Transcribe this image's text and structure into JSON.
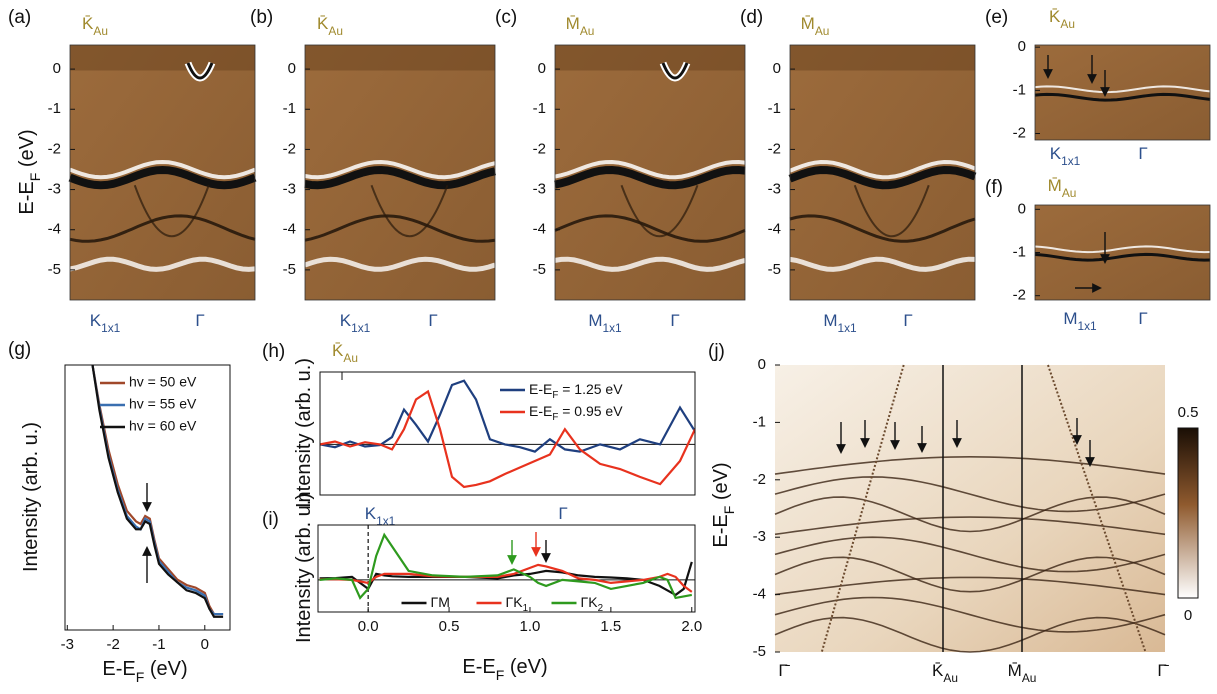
{
  "shared_ylabel": [
    {
      "t": "E-E"
    },
    {
      "t": "F",
      "sub": true
    },
    {
      "t": " (eV)"
    }
  ],
  "chart_data": [
    {
      "type": "image",
      "panel_label": "(a)",
      "ylim": [
        -5.75,
        0.6
      ],
      "yticks": [
        0,
        -1,
        -2,
        -3,
        -4,
        -5
      ],
      "top_labels": [
        [
          {
            "t": "K̄"
          },
          {
            "t": "Au",
            "sub": true
          }
        ]
      ],
      "x_labels": [
        [
          {
            "t": "K"
          },
          {
            "t": "1x1",
            "sub": true
          }
        ],
        [
          {
            "t": "Γ"
          }
        ]
      ]
    },
    {
      "type": "image",
      "panel_label": "(b)",
      "ylim": [
        -5.75,
        0.6
      ],
      "yticks": [
        0,
        -1,
        -2,
        -3,
        -4,
        -5
      ],
      "top_labels": [
        [
          {
            "t": "K̄"
          },
          {
            "t": "Au",
            "sub": true
          }
        ]
      ],
      "x_labels": [
        [
          {
            "t": "K"
          },
          {
            "t": "1x1",
            "sub": true
          }
        ],
        [
          {
            "t": "Γ"
          }
        ]
      ]
    },
    {
      "type": "image",
      "panel_label": "(c)",
      "ylim": [
        -5.75,
        0.6
      ],
      "yticks": [
        0,
        -1,
        -2,
        -3,
        -4,
        -5
      ],
      "top_labels": [
        [
          {
            "t": "M̄"
          },
          {
            "t": "Au",
            "sub": true
          }
        ]
      ],
      "x_labels": [
        [
          {
            "t": "M"
          },
          {
            "t": "1x1",
            "sub": true
          }
        ],
        [
          {
            "t": "Γ"
          }
        ]
      ]
    },
    {
      "type": "image",
      "panel_label": "(d)",
      "ylim": [
        -5.75,
        0.6
      ],
      "yticks": [
        0,
        -1,
        -2,
        -3,
        -4,
        -5
      ],
      "top_labels": [
        [
          {
            "t": "M̄"
          },
          {
            "t": "Au",
            "sub": true
          }
        ]
      ],
      "x_labels": [
        [
          {
            "t": "M"
          },
          {
            "t": "1x1",
            "sub": true
          }
        ],
        [
          {
            "t": "Γ"
          }
        ]
      ]
    },
    {
      "type": "image",
      "panel_label": "(e)",
      "ylim": [
        -2.15,
        0.05
      ],
      "yticks": [
        0,
        -1,
        -2
      ],
      "top_labels": [
        [
          {
            "t": "K̄"
          },
          {
            "t": "Au",
            "sub": true
          }
        ]
      ],
      "x_labels": [
        [
          {
            "t": "K"
          },
          {
            "t": "1x1",
            "sub": true
          }
        ],
        [
          {
            "t": "Γ"
          }
        ]
      ]
    },
    {
      "type": "image",
      "panel_label": "(f)",
      "ylim": [
        -2.1,
        0.1
      ],
      "yticks": [
        0,
        -1,
        -2
      ],
      "top_labels": [
        [
          {
            "t": "M̄"
          },
          {
            "t": "Au",
            "sub": true
          }
        ]
      ],
      "x_labels": [
        [
          {
            "t": "M"
          },
          {
            "t": "1x1",
            "sub": true
          }
        ],
        [
          {
            "t": "Γ"
          }
        ]
      ]
    },
    {
      "type": "line",
      "panel_label": "(g)",
      "xlim": [
        -3.05,
        0.55
      ],
      "ylim": [
        0,
        1
      ],
      "xticks": [
        -3,
        -2,
        -1,
        0
      ],
      "xlabel": [
        {
          "t": "E-E"
        },
        {
          "t": "F",
          "sub": true
        },
        {
          "t": " (eV)"
        }
      ],
      "ylabel": [
        {
          "t": "Intensity (arb. u.)"
        }
      ],
      "legend": "upper right",
      "x": [
        -2.45,
        -2.3,
        -2.1,
        -1.9,
        -1.7,
        -1.5,
        -1.4,
        -1.3,
        -1.2,
        -1.1,
        -1.0,
        -0.8,
        -0.6,
        -0.4,
        -0.2,
        0,
        0.1,
        0.2,
        0.4
      ],
      "series": [
        {
          "name": "hv = 50 eV",
          "color": "#a0482a",
          "values": [
            1.0,
            0.85,
            0.68,
            0.55,
            0.45,
            0.41,
            0.4,
            0.43,
            0.42,
            0.34,
            0.27,
            0.23,
            0.19,
            0.17,
            0.16,
            0.14,
            0.09,
            0.06,
            0.06
          ]
        },
        {
          "name": "hv = 55 eV",
          "color": "#3a6fb0",
          "values": [
            1.0,
            0.84,
            0.66,
            0.53,
            0.43,
            0.39,
            0.38,
            0.42,
            0.41,
            0.33,
            0.26,
            0.22,
            0.18,
            0.16,
            0.15,
            0.13,
            0.08,
            0.06,
            0.06
          ]
        },
        {
          "name": "hv = 60 eV",
          "color": "#111111",
          "values": [
            1.0,
            0.83,
            0.65,
            0.52,
            0.42,
            0.38,
            0.38,
            0.41,
            0.4,
            0.32,
            0.25,
            0.21,
            0.18,
            0.15,
            0.14,
            0.12,
            0.08,
            0.05,
            0.05
          ]
        }
      ]
    },
    {
      "type": "line",
      "panel_label": "(h)",
      "xlim": [
        0,
        1
      ],
      "ylim": [
        -0.7,
        1
      ],
      "zero_line": true,
      "legend": "upper right",
      "ylabel": [
        {
          "t": "Intensity (arb. u.)"
        }
      ],
      "top_labels": [
        [
          {
            "t": "K̄"
          },
          {
            "t": "Au",
            "sub": true
          }
        ]
      ],
      "x_labels": [
        [
          {
            "t": "K"
          },
          {
            "t": "1x1",
            "sub": true
          }
        ],
        [
          {
            "t": "Γ"
          }
        ]
      ],
      "x": [
        0,
        0.04,
        0.08,
        0.12,
        0.16,
        0.192,
        0.224,
        0.256,
        0.288,
        0.32,
        0.352,
        0.384,
        0.416,
        0.453,
        0.493,
        0.533,
        0.573,
        0.613,
        0.653,
        0.693,
        0.747,
        0.8,
        0.853,
        0.907,
        0.96,
        1.0
      ],
      "series": [
        {
          "name": [
            {
              "t": "E-E"
            },
            {
              "t": "F",
              "sub": true
            },
            {
              "t": " = 1.25 eV"
            }
          ],
          "color": "#1f3f7f",
          "values": [
            0,
            -0.04,
            0.04,
            -0.03,
            -0.01,
            0.1,
            0.48,
            0.27,
            0.04,
            0.41,
            0.82,
            0.88,
            0.62,
            0.07,
            0,
            -0.04,
            -0.1,
            0.07,
            -0.07,
            -0.1,
            0,
            -0.07,
            0.07,
            0,
            0.51,
            0.18
          ]
        },
        {
          "name": [
            {
              "t": "E-E"
            },
            {
              "t": "F",
              "sub": true
            },
            {
              "t": " = 0.95 eV"
            }
          ],
          "color": "#e8321e",
          "values": [
            0,
            0.04,
            -0.03,
            0.03,
            0,
            -0.07,
            0.21,
            0.62,
            0.73,
            0.21,
            -0.45,
            -0.59,
            -0.56,
            -0.51,
            -0.41,
            -0.32,
            -0.23,
            -0.14,
            0.21,
            -0.07,
            -0.27,
            -0.34,
            -0.45,
            -0.55,
            -0.23,
            0.21
          ]
        }
      ]
    },
    {
      "type": "line",
      "panel_label": "(i)",
      "xlim": [
        -0.31,
        2.02
      ],
      "ylim": [
        -1.07,
        1.83
      ],
      "zero_line": true,
      "zero_x_dashed": true,
      "legend": "lower center",
      "xticks": [
        {
          "value": 0,
          "label": "0.0"
        },
        {
          "value": 0.5,
          "label": "0.5"
        },
        {
          "value": 1,
          "label": "1.0"
        },
        {
          "value": 1.5,
          "label": "1.5"
        },
        {
          "value": 2,
          "label": "2.0"
        }
      ],
      "xlabel": [
        {
          "t": "E-E"
        },
        {
          "t": "F",
          "sub": true
        },
        {
          "t": " (eV)"
        }
      ],
      "ylabel": [
        {
          "t": "Intensity (arb. u.)"
        }
      ],
      "x": [
        -0.3,
        -0.2,
        -0.1,
        -0.05,
        0,
        0.05,
        0.1,
        0.15,
        0.25,
        0.4,
        0.6,
        0.8,
        0.9,
        1.0,
        1.05,
        1.1,
        1.2,
        1.3,
        1.4,
        1.5,
        1.6,
        1.7,
        1.8,
        1.85,
        1.9,
        1.95,
        2.0
      ],
      "series": [
        {
          "name": [
            {
              "t": "ΓM"
            }
          ],
          "color": "#111111",
          "values": [
            0.05,
            0.06,
            0.1,
            -0.1,
            -0.3,
            0.2,
            0.15,
            0.12,
            0.1,
            0.1,
            0.1,
            0.05,
            0.15,
            0.2,
            0.25,
            0.3,
            0.25,
            0.15,
            0.1,
            0.08,
            0.05,
            0,
            -0.2,
            -0.35,
            -0.5,
            -0.3,
            0.6
          ]
        },
        {
          "name": [
            {
              "t": "ΓK"
            },
            {
              "t": "1",
              "sub": true
            }
          ],
          "color": "#e8321e",
          "values": [
            0.02,
            0.02,
            0,
            -0.05,
            -0.1,
            0.1,
            0.2,
            0.2,
            0.2,
            0.12,
            0.1,
            0.1,
            0.2,
            0.4,
            0.5,
            0.45,
            0.3,
            0.05,
            0,
            -0.1,
            -0.05,
            0,
            0.1,
            0.2,
            0.1,
            -0.2,
            -0.4
          ]
        },
        {
          "name": [
            {
              "t": "ΓK"
            },
            {
              "t": "2",
              "sub": true
            }
          ],
          "color": "#2e9a1e",
          "values": [
            0,
            0.05,
            0,
            -0.6,
            -0.3,
            0.8,
            1.5,
            1.1,
            0.3,
            0.15,
            0.1,
            0.15,
            0.35,
            0.1,
            -0.1,
            -0.2,
            0,
            -0.05,
            -0.1,
            -0.3,
            -0.2,
            -0.1,
            0.1,
            0,
            -0.6,
            -0.55,
            -0.5
          ]
        }
      ]
    },
    {
      "type": "image",
      "panel_label": "(j)",
      "ylim": [
        -5,
        0
      ],
      "yticks": [
        0,
        -1,
        -2,
        -3,
        -4,
        -5
      ],
      "ylabel": [
        {
          "t": "E-E"
        },
        {
          "t": "F",
          "sub": true
        },
        {
          "t": " (eV)"
        }
      ],
      "x_labels": [
        [
          {
            "t": "Γ̄"
          }
        ],
        [
          {
            "t": "K̄"
          },
          {
            "t": "Au",
            "sub": true
          }
        ],
        [
          {
            "t": "M̄"
          },
          {
            "t": "Au",
            "sub": true
          }
        ],
        [
          {
            "t": "Γ̄"
          }
        ]
      ],
      "colorbar": {
        "lim": [
          0,
          0.5
        ],
        "ticks": [
          0,
          0.5
        ]
      }
    }
  ]
}
